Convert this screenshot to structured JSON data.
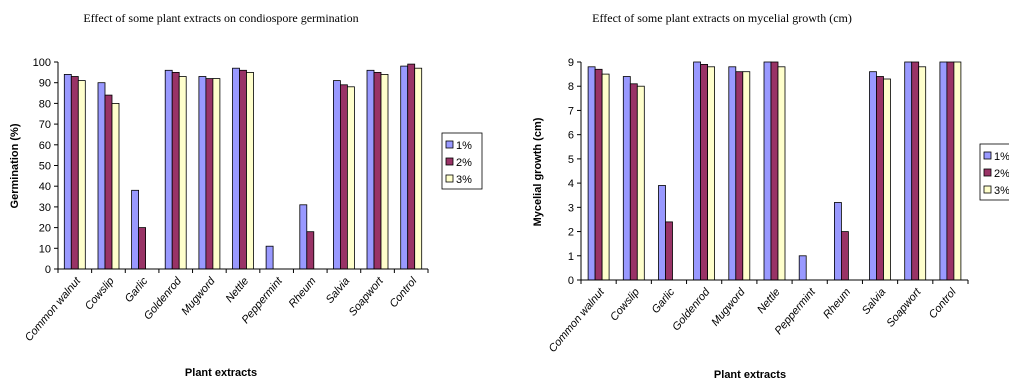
{
  "chart_data": [
    {
      "type": "bar",
      "title": "Effect of some plant extracts on condiospore germination",
      "xlabel": "Plant extracts",
      "ylabel": "Germination (%)",
      "ylim": [
        0,
        100
      ],
      "yticks": [
        "0",
        "10",
        "20",
        "30",
        "40",
        "50",
        "60",
        "70",
        "80",
        "90",
        "100"
      ],
      "grid": false,
      "legend": "right",
      "categories": [
        "Common walnut",
        "Cowslip",
        "Garlic",
        "Goldenrod",
        "Mugword",
        "Nettle",
        "Peppermint",
        "Rheum",
        "Salvia",
        "Soapwort",
        "Control"
      ],
      "series": [
        {
          "name": "1%",
          "color": "#9999ff",
          "values": [
            94,
            90,
            38,
            96,
            93,
            97,
            11,
            31,
            91,
            96,
            98
          ]
        },
        {
          "name": "2%",
          "color": "#993366",
          "values": [
            93,
            84,
            20,
            95,
            92,
            96,
            null,
            18,
            89,
            95,
            99
          ]
        },
        {
          "name": "3%",
          "color": "#ffffcc",
          "values": [
            91,
            80,
            null,
            93,
            92,
            95,
            null,
            null,
            88,
            94,
            97
          ]
        }
      ]
    },
    {
      "type": "bar",
      "title": "Effect of some  plant extracts on mycelial growth (cm)",
      "xlabel": "Plant extracts",
      "ylabel": "Mycelial growth (cm)",
      "ylim": [
        0,
        9
      ],
      "yticks": [
        "0",
        "1",
        "2",
        "3",
        "4",
        "5",
        "6",
        "7",
        "8",
        "9"
      ],
      "grid": false,
      "legend": "right",
      "categories": [
        "Common walnut",
        "Cowslip",
        "Garlic",
        "Goldenrod",
        "Mugword",
        "Nettle",
        "Peppermint",
        "Rheum",
        "Salvia",
        "Soapwort",
        "Control"
      ],
      "series": [
        {
          "name": "1%",
          "color": "#9999ff",
          "values": [
            8.8,
            8.4,
            3.9,
            9.0,
            8.8,
            9.0,
            1.0,
            3.2,
            8.6,
            9.0,
            9.0
          ]
        },
        {
          "name": "2%",
          "color": "#993366",
          "values": [
            8.7,
            8.1,
            2.4,
            8.9,
            8.6,
            9.0,
            null,
            2.0,
            8.4,
            9.0,
            9.0
          ]
        },
        {
          "name": "3%",
          "color": "#ffffcc",
          "values": [
            8.5,
            8.0,
            null,
            8.8,
            8.6,
            8.8,
            null,
            null,
            8.3,
            8.8,
            9.0
          ]
        }
      ]
    }
  ]
}
